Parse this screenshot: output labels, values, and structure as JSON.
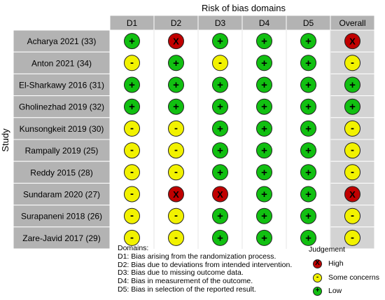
{
  "title": "Risk of bias domains",
  "y_axis_label": "Study",
  "columns": [
    "D1",
    "D2",
    "D3",
    "D4",
    "D5",
    "Overall"
  ],
  "studies": [
    {
      "name": "Acharya 2021 (33)",
      "judgements": [
        "low",
        "high",
        "low",
        "low",
        "low",
        "high"
      ]
    },
    {
      "name": "Anton 2021 (34)",
      "judgements": [
        "some",
        "low",
        "some",
        "low",
        "low",
        "some"
      ]
    },
    {
      "name": "El-Sharkawy 2016 (31)",
      "judgements": [
        "low",
        "low",
        "low",
        "low",
        "low",
        "low"
      ]
    },
    {
      "name": "Gholinezhad 2019 (32)",
      "judgements": [
        "low",
        "low",
        "low",
        "low",
        "low",
        "low"
      ]
    },
    {
      "name": "Kunsongkeit 2019 (30)",
      "judgements": [
        "some",
        "some",
        "low",
        "low",
        "low",
        "some"
      ]
    },
    {
      "name": "Rampally 2019 (25)",
      "judgements": [
        "some",
        "some",
        "low",
        "low",
        "low",
        "some"
      ]
    },
    {
      "name": "Reddy 2015 (28)",
      "judgements": [
        "some",
        "some",
        "low",
        "low",
        "low",
        "some"
      ]
    },
    {
      "name": "Sundaram 2020 (27)",
      "judgements": [
        "some",
        "high",
        "high",
        "low",
        "low",
        "high"
      ]
    },
    {
      "name": "Surapaneni 2018 (26)",
      "judgements": [
        "some",
        "some",
        "low",
        "low",
        "low",
        "some"
      ]
    },
    {
      "name": "Zare-Javid 2017 (29)",
      "judgements": [
        "some",
        "some",
        "low",
        "low",
        "low",
        "some"
      ]
    }
  ],
  "symbols": {
    "high": {
      "glyph": "X",
      "color": "#c00000"
    },
    "some": {
      "glyph": "-",
      "color": "#f2f200"
    },
    "low": {
      "glyph": "+",
      "color": "#11c011"
    }
  },
  "domains_legend": {
    "title": "Domains:",
    "items": [
      "D1: Bias arising from the randomization process.",
      "D2: Bias due to deviations from intended intervention.",
      "D3: Bias due to missing outcome data.",
      "D4: Bias in measurement of the outcome.",
      "D5: Bias in selection of the reported result."
    ]
  },
  "judgement_legend": {
    "title": "Judgement",
    "items": [
      {
        "key": "high",
        "label": "High"
      },
      {
        "key": "some",
        "label": "Some concerns"
      },
      {
        "key": "low",
        "label": "Low"
      }
    ]
  },
  "colors": {
    "header_fill": "#b3b3b3",
    "study_fill": "#b3b3b3",
    "overall_fill": "#d3d3d3",
    "cell_fill": "#ffffff",
    "border": "#ffffff"
  }
}
